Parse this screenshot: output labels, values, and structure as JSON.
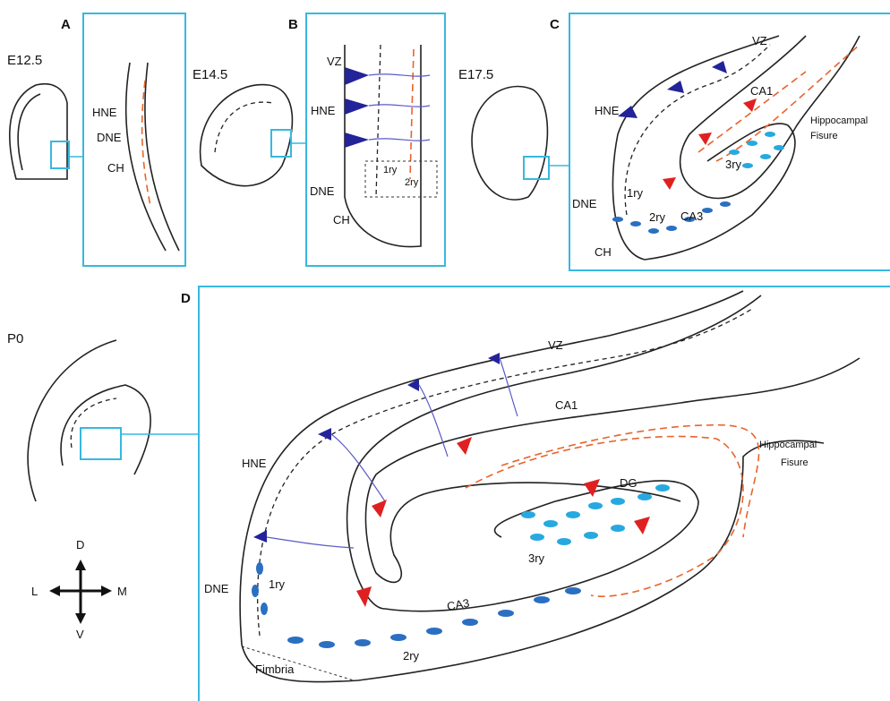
{
  "panels": [
    {
      "label": "A",
      "stage": "E12.5",
      "hne": "HNE",
      "dne": "DNE",
      "ch": "CH"
    },
    {
      "label": "B",
      "stage": "E14.5",
      "vz": "VZ",
      "hne": "HNE",
      "dne": "DNE",
      "ch": "CH",
      "ry1": "1ry",
      "ry2": "2ry"
    },
    {
      "label": "C",
      "stage": "E17.5",
      "vz": "VZ",
      "hne": "HNE",
      "ca1": "CA1",
      "fissure": [
        "Hippocampal",
        "Fisure"
      ],
      "ry3": "3ry",
      "ry1": "1ry",
      "ca3": "CA3",
      "dne": "DNE",
      "ry2": "2ry",
      "ch": "CH"
    },
    {
      "label": "D",
      "stage": "P0",
      "vz": "VZ",
      "ca1": "CA1",
      "hne": "HNE",
      "fissure": [
        "Hippocampal",
        "Fisure"
      ],
      "dg": "DG",
      "ry3": "3ry",
      "dne": "DNE",
      "ry1": "1ry",
      "ca3": "CA3",
      "ry2": "2ry",
      "fimbria": "Fimbria"
    }
  ],
  "compass": {
    "dorsal": "D",
    "lateral": "L",
    "medial": "M",
    "ventral": "V"
  }
}
